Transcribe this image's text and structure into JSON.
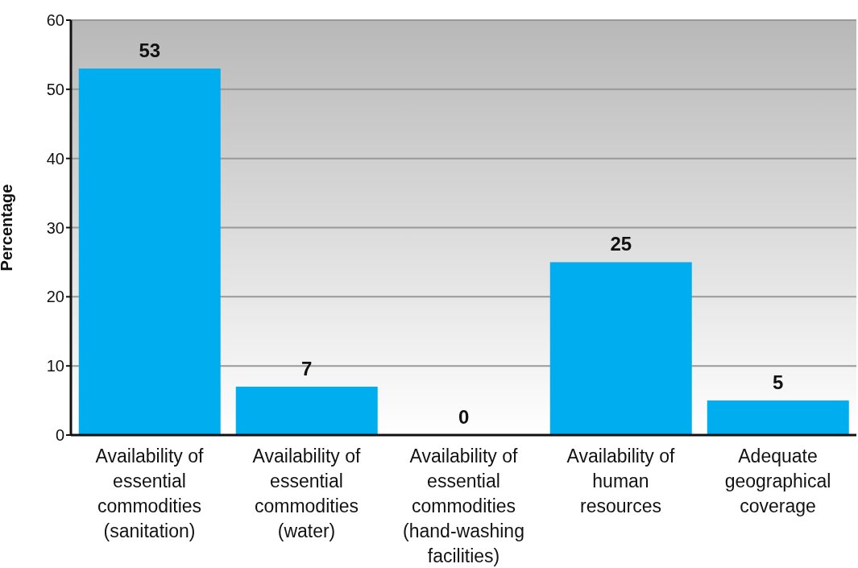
{
  "chart_data": {
    "type": "bar",
    "ylabel": "Percentage",
    "categories": [
      "Availability of\nessential\ncommodities\n(sanitation)",
      "Availability of\nessential\ncommodities\n(water)",
      "Availability of\nessential\ncommodities\n(hand-washing\nfacilities)",
      "Availability of\nhuman\nresources",
      "Adequate\ngeographical\ncoverage"
    ],
    "values": [
      53,
      7,
      0,
      25,
      5
    ],
    "color": "#00aeef",
    "ylim": [
      0,
      60
    ],
    "yticks": [
      0,
      10,
      20,
      30,
      40,
      50,
      60
    ],
    "grid": "y",
    "data_labels": true
  }
}
